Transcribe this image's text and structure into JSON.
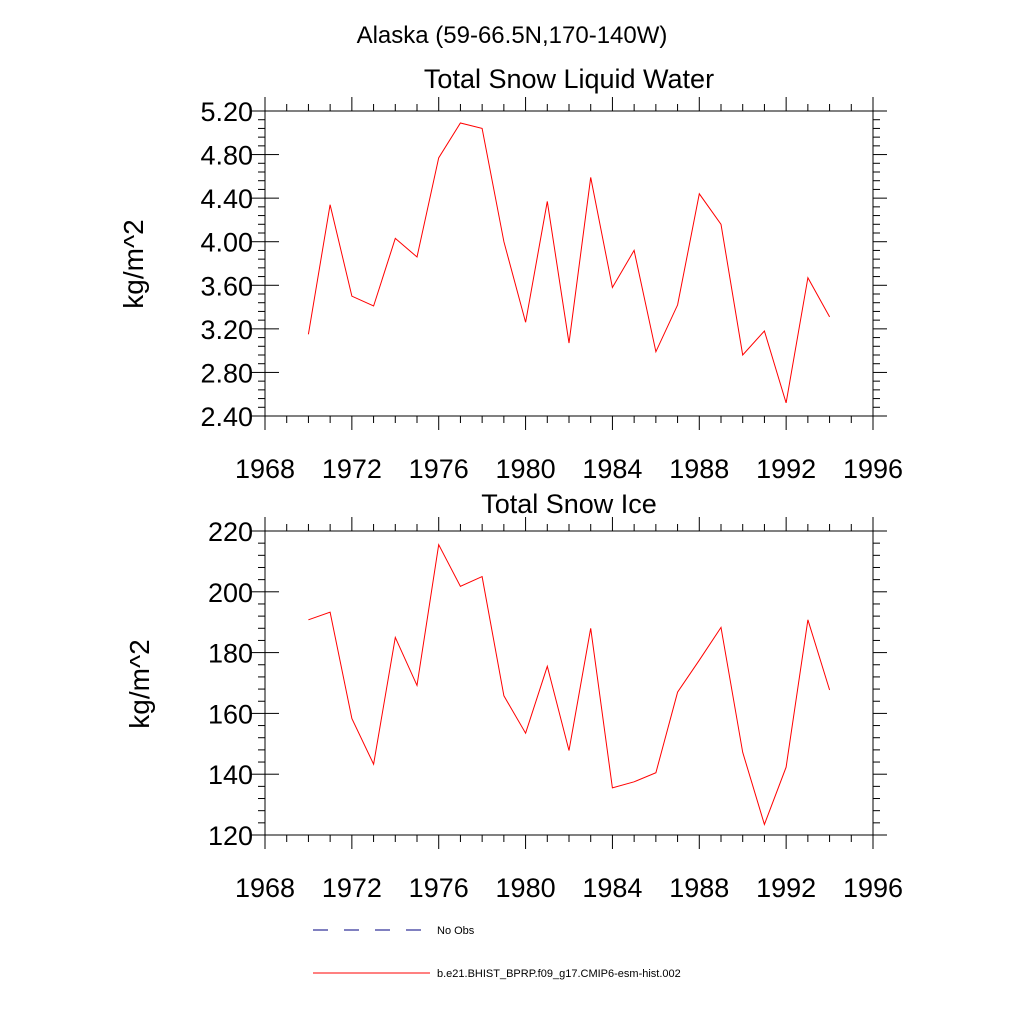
{
  "suptitle": "Alaska (59-66.5N,170-140W)",
  "legend": {
    "position": "bottom",
    "entries": [
      {
        "label": "No Obs",
        "color": "#000080",
        "dash": "dashed"
      },
      {
        "label": "b.e21.BHIST_BPRP.f09_g17.CMIP6-esm-hist.002",
        "color": "#ff0000",
        "dash": "solid"
      }
    ]
  },
  "chart_data": [
    {
      "type": "line",
      "title": "Total Snow Liquid Water",
      "xlabel": "",
      "ylabel": "kg/m^2",
      "xlim": [
        1968,
        1996
      ],
      "ylim": [
        2.4,
        5.2
      ],
      "xticks": [
        1968,
        1972,
        1976,
        1980,
        1984,
        1988,
        1992,
        1996
      ],
      "xtick_labels": [
        "1968",
        "1972",
        "1976",
        "1980",
        "1984",
        "1988",
        "1992",
        "1996"
      ],
      "yticks": [
        2.4,
        2.8,
        3.2,
        3.6,
        4.0,
        4.4,
        4.8,
        5.2
      ],
      "ytick_labels": [
        "2.40",
        "2.80",
        "3.20",
        "3.60",
        "4.00",
        "4.40",
        "4.80",
        "5.20"
      ],
      "grid": false,
      "series": [
        {
          "color": "#ff0000",
          "x": [
            1970,
            1971,
            1972,
            1973,
            1974,
            1975,
            1976,
            1977,
            1978,
            1979,
            1980,
            1981,
            1982,
            1983,
            1984,
            1985,
            1986,
            1987,
            1988,
            1989,
            1990,
            1991,
            1992,
            1993,
            1994
          ],
          "values": [
            3.15,
            4.34,
            3.5,
            3.41,
            4.03,
            3.86,
            4.77,
            5.09,
            5.04,
            4.0,
            3.26,
            4.37,
            3.07,
            4.59,
            3.58,
            3.92,
            2.99,
            3.42,
            4.44,
            4.16,
            2.96,
            3.18,
            2.52,
            3.67,
            3.31
          ]
        }
      ]
    },
    {
      "type": "line",
      "title": "Total Snow Ice",
      "xlabel": "",
      "ylabel": "kg/m^2",
      "xlim": [
        1968,
        1996
      ],
      "ylim": [
        120,
        220
      ],
      "xticks": [
        1968,
        1972,
        1976,
        1980,
        1984,
        1988,
        1992,
        1996
      ],
      "xtick_labels": [
        "1968",
        "1972",
        "1976",
        "1980",
        "1984",
        "1988",
        "1992",
        "1996"
      ],
      "yticks": [
        120,
        140,
        160,
        180,
        200,
        220
      ],
      "ytick_labels": [
        "120",
        "140",
        "160",
        "180",
        "200",
        "220"
      ],
      "grid": false,
      "series": [
        {
          "color": "#ff0000",
          "x": [
            1970,
            1971,
            1972,
            1973,
            1974,
            1975,
            1976,
            1977,
            1978,
            1979,
            1980,
            1981,
            1982,
            1983,
            1984,
            1985,
            1986,
            1987,
            1988,
            1989,
            1990,
            1991,
            1992,
            1993,
            1994
          ],
          "values": [
            190.8,
            193.3,
            158.3,
            143.3,
            185.0,
            169.2,
            215.5,
            201.8,
            205.0,
            165.8,
            153.5,
            175.5,
            147.8,
            188.0,
            135.5,
            137.5,
            140.5,
            167.0,
            177.5,
            188.3,
            147.2,
            123.5,
            142.3,
            190.8,
            167.7
          ]
        }
      ]
    }
  ]
}
